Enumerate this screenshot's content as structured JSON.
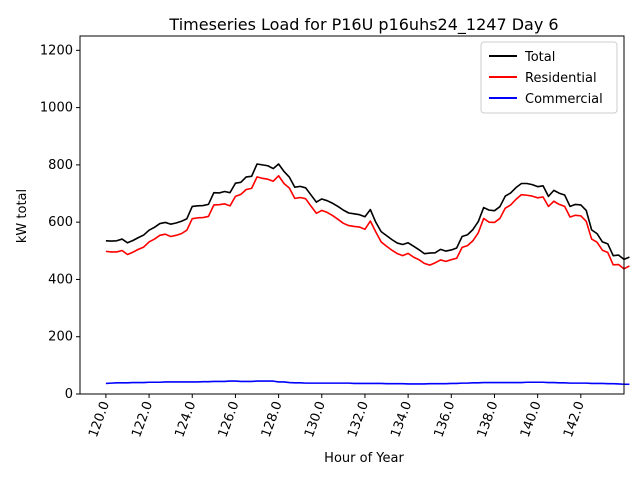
{
  "chart_data": {
    "type": "line",
    "title": "Timeseries Load for P16U p16uhs24_1247  Day 6",
    "xlabel": "Hour of Year",
    "ylabel": "kW total",
    "xlim": [
      118.8,
      144.0
    ],
    "ylim": [
      0,
      1250
    ],
    "x_ticks": [
      120,
      122,
      124,
      126,
      128,
      130,
      132,
      134,
      136,
      138,
      140,
      142
    ],
    "x_tick_labels": [
      "120.0",
      "122.0",
      "124.0",
      "126.0",
      "128.0",
      "130.0",
      "132.0",
      "134.0",
      "136.0",
      "138.0",
      "140.0",
      "142.0"
    ],
    "y_ticks": [
      0,
      200,
      400,
      600,
      800,
      1000,
      1200
    ],
    "y_tick_labels": [
      "0",
      "200",
      "400",
      "600",
      "800",
      "1000",
      "1200"
    ],
    "legend_position": "top-right",
    "x_start": 120.0,
    "x_step": 0.25,
    "series": [
      {
        "name": "Total",
        "color": "#000000",
        "values": [
          535,
          534,
          535,
          541,
          528,
          536,
          546,
          555,
          572,
          582,
          595,
          599,
          593,
          597,
          603,
          612,
          655,
          657,
          658,
          662,
          703,
          702,
          707,
          703,
          736,
          739,
          758,
          760,
          803,
          800,
          797,
          787,
          803,
          777,
          757,
          722,
          725,
          720,
          695,
          670,
          681,
          675,
          666,
          655,
          642,
          632,
          629,
          626,
          619,
          644,
          600,
          567,
          553,
          539,
          527,
          522,
          528,
          516,
          504,
          490,
          492,
          493,
          505,
          499,
          503,
          510,
          550,
          556,
          574,
          602,
          651,
          642,
          640,
          654,
          691,
          702,
          721,
          735,
          735,
          731,
          724,
          727,
          690,
          711,
          701,
          695,
          655,
          662,
          660,
          641,
          573,
          560,
          531,
          524,
          483,
          485,
          470,
          478
        ]
      },
      {
        "name": "Residential",
        "color": "#ff0000",
        "values": [
          498,
          496,
          496,
          501,
          487,
          495,
          505,
          513,
          531,
          541,
          554,
          558,
          550,
          554,
          560,
          572,
          612,
          615,
          616,
          620,
          660,
          661,
          664,
          657,
          690,
          697,
          714,
          718,
          758,
          753,
          750,
          743,
          762,
          735,
          719,
          683,
          686,
          682,
          656,
          631,
          641,
          634,
          623,
          610,
          596,
          588,
          585,
          583,
          575,
          604,
          566,
          531,
          516,
          502,
          490,
          483,
          491,
          478,
          469,
          456,
          450,
          458,
          468,
          463,
          469,
          474,
          512,
          518,
          535,
          563,
          613,
          600,
          599,
          613,
          649,
          660,
          680,
          696,
          694,
          691,
          685,
          688,
          655,
          673,
          662,
          655,
          618,
          624,
          622,
          603,
          541,
          530,
          502,
          494,
          451,
          452,
          437,
          447
        ]
      },
      {
        "name": "Commercial",
        "color": "#0000ff",
        "values": [
          37,
          38,
          39,
          39,
          39,
          40,
          40,
          40,
          41,
          41,
          41,
          42,
          42,
          42,
          42,
          42,
          42,
          42,
          43,
          43,
          44,
          44,
          44,
          45,
          45,
          44,
          44,
          44,
          45,
          45,
          45,
          45,
          42,
          42,
          40,
          39,
          39,
          38,
          38,
          38,
          38,
          38,
          38,
          38,
          38,
          38,
          37,
          37,
          37,
          37,
          37,
          37,
          36,
          36,
          36,
          36,
          35,
          35,
          35,
          35,
          36,
          36,
          36,
          36,
          37,
          37,
          38,
          38,
          39,
          39,
          40,
          40,
          40,
          40,
          40,
          40,
          40,
          40,
          41,
          41,
          41,
          41,
          40,
          40,
          39,
          39,
          38,
          38,
          38,
          38,
          37,
          37,
          37,
          36,
          36,
          35,
          34,
          34
        ]
      }
    ]
  }
}
